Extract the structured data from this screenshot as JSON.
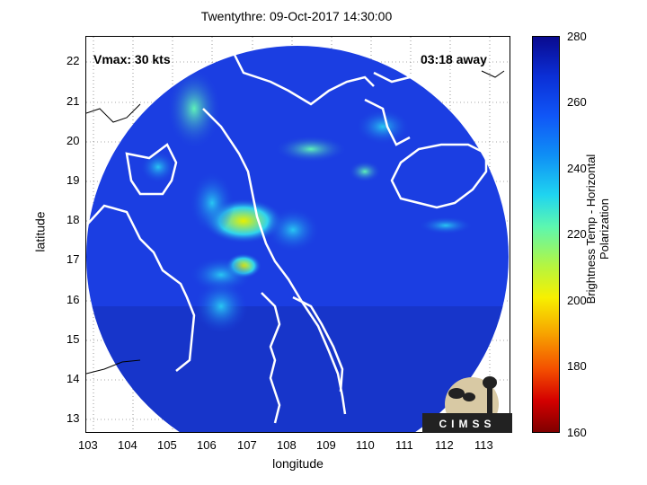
{
  "title": "Twentythre: 09-Oct-2017 14:30:00",
  "annotations": {
    "vmax": "Vmax: 30 kts",
    "away": "03:18 away"
  },
  "axes": {
    "xlabel": "longitude",
    "ylabel": "latitude",
    "xticks": [
      "103",
      "104",
      "105",
      "106",
      "107",
      "108",
      "109",
      "110",
      "111",
      "112",
      "113"
    ],
    "yticks": [
      "22",
      "21",
      "20",
      "19",
      "18",
      "17",
      "16",
      "15",
      "14",
      "13"
    ],
    "xlim": [
      102.9,
      113.6
    ],
    "ylim": [
      12.7,
      22.7
    ]
  },
  "colorbar": {
    "label": "Brightness Temp - Horizontal Polarization",
    "ticks": [
      "280",
      "260",
      "240",
      "220",
      "200",
      "180",
      "160"
    ],
    "range": [
      160,
      280
    ]
  },
  "logo": {
    "text": "CIMSS"
  },
  "colors": {
    "swath_base": "#1a3fe0",
    "cold_core": "#2fd0f0",
    "warm": "#d8e800"
  }
}
